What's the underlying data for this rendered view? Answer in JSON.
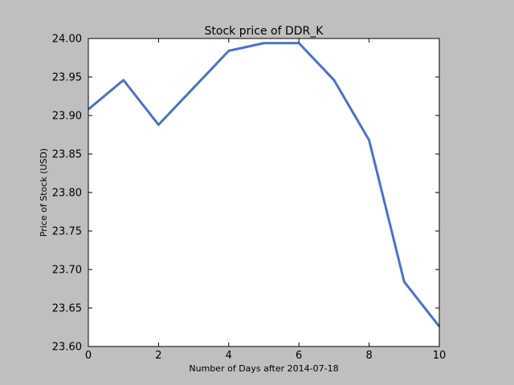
{
  "chart_data": {
    "type": "line",
    "title": "Stock price of DDR_K",
    "xlabel": "Number of Days after 2014-07-18",
    "ylabel": "Price of Stock (USD)",
    "xlim": [
      0,
      10
    ],
    "ylim": [
      23.6,
      24.0
    ],
    "x_ticks": [
      0,
      2,
      4,
      6,
      8,
      10
    ],
    "y_ticks": [
      23.6,
      23.65,
      23.7,
      23.75,
      23.8,
      23.85,
      23.9,
      23.95,
      24.0
    ],
    "x_tick_labels": [
      "0",
      "2",
      "4",
      "6",
      "8",
      "10"
    ],
    "y_tick_labels": [
      "23.60",
      "23.65",
      "23.70",
      "23.75",
      "23.80",
      "23.85",
      "23.90",
      "23.95",
      "24.00"
    ],
    "grid": false,
    "series": [
      {
        "x": [
          0,
          1,
          2,
          3,
          4,
          5,
          6,
          7,
          8,
          9,
          10
        ],
        "values": [
          23.908,
          23.946,
          23.888,
          23.936,
          23.984,
          23.994,
          23.994,
          23.946,
          23.868,
          23.684,
          23.626
        ],
        "color": "#4a72c9"
      }
    ],
    "figure_background": "#bfbfbf",
    "axes_background": "#ffffff"
  }
}
